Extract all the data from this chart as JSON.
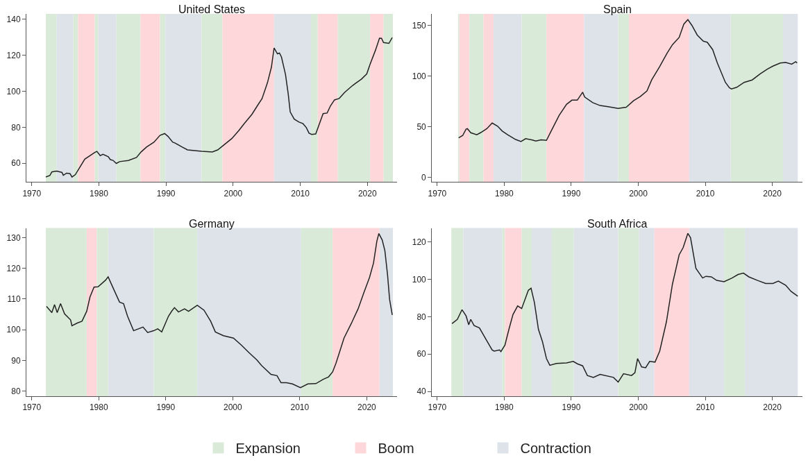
{
  "chart_data": [
    {
      "type": "line",
      "title": "United States",
      "legend": "bottom",
      "color": "#222222",
      "x": [
        1972.1,
        1972.7,
        1973.0,
        1973.7,
        1974.5,
        1974.7,
        1975.2,
        1975.7,
        1976.0,
        1976.5,
        1977.9,
        1979.4,
        1979.7,
        1980.2,
        1980.6,
        1981.4,
        1981.7,
        1982.1,
        1982.6,
        1983.1,
        1984.4,
        1985.6,
        1986.3,
        1987.1,
        1988.2,
        1989.1,
        1989.8,
        1990.3,
        1991.0,
        1991.3,
        1992.4,
        1993.2,
        1995.3,
        1996.9,
        1997.7,
        1998.4,
        1999.8,
        2000.9,
        2001.6,
        2002.8,
        2003.6,
        2004.3,
        2005.1,
        2005.7,
        2006.1,
        2006.6,
        2006.9,
        2007.2,
        2007.8,
        2008.2,
        2008.5,
        2009.1,
        2009.8,
        2010.4,
        2010.9,
        2011.3,
        2011.7,
        2012.3,
        2013.4,
        2014.0,
        2014.5,
        2015.1,
        2015.8,
        2016.6,
        2017.6,
        2018.3,
        2019.1,
        2019.9,
        2020.4,
        2021.2,
        2021.8,
        2022.1,
        2022.4,
        2023.2,
        2023.7
      ],
      "values": [
        52.4,
        53.2,
        55.2,
        55.6,
        54.9,
        53.3,
        54.5,
        54.2,
        52.3,
        53.7,
        62.3,
        66.0,
        66.6,
        64.2,
        65.0,
        63.6,
        62.0,
        61.6,
        59.9,
        60.9,
        61.5,
        63.2,
        66.3,
        69.0,
        71.7,
        75.5,
        76.5,
        74.9,
        71.7,
        71.3,
        69.0,
        67.4,
        66.6,
        66.3,
        67.4,
        69.5,
        73.7,
        78.4,
        81.8,
        87.2,
        91.9,
        95.9,
        104.6,
        113.4,
        124.1,
        120.8,
        121.2,
        119.0,
        109.3,
        98.6,
        88.5,
        84.5,
        82.9,
        82.0,
        79.8,
        76.7,
        76.0,
        76.3,
        87.6,
        87.9,
        91.9,
        95.2,
        96.0,
        99.3,
        102.6,
        104.6,
        106.7,
        109.6,
        115.0,
        122.8,
        129.5,
        129.4,
        127.1,
        126.6,
        129.8
      ],
      "bands": [
        {
          "axis": "x",
          "from": 1972.1,
          "to": 1973.7,
          "label": "Expansion",
          "color": "#d9ead9"
        },
        {
          "axis": "x",
          "from": 1973.7,
          "to": 1976.2,
          "color": "#dee3ea"
        },
        {
          "axis": "x",
          "from": 1976.2,
          "to": 1976.9,
          "color": "#d9ead9"
        },
        {
          "axis": "x",
          "from": 1976.9,
          "to": 1979.4,
          "label": "Boom",
          "color": "#fdd7da"
        },
        {
          "axis": "x",
          "from": 1979.4,
          "to": 1979.9,
          "color": "#d9ead9"
        },
        {
          "axis": "x",
          "from": 1979.9,
          "to": 1982.6,
          "label": "Contraction",
          "color": "#dee3ea"
        },
        {
          "axis": "x",
          "from": 1982.6,
          "to": 1986.2,
          "color": "#d9ead9"
        },
        {
          "axis": "x",
          "from": 1986.2,
          "to": 1989.1,
          "color": "#fdd7da"
        },
        {
          "axis": "x",
          "from": 1989.1,
          "to": 1989.9,
          "color": "#d9ead9"
        },
        {
          "axis": "x",
          "from": 1989.9,
          "to": 1995.3,
          "color": "#dee3ea"
        },
        {
          "axis": "x",
          "from": 1995.3,
          "to": 1998.4,
          "color": "#d9ead9"
        },
        {
          "axis": "x",
          "from": 1998.4,
          "to": 2006.1,
          "color": "#fdd7da"
        },
        {
          "axis": "x",
          "from": 2006.1,
          "to": 2011.6,
          "color": "#dee3ea"
        },
        {
          "axis": "x",
          "from": 2011.6,
          "to": 2012.6,
          "color": "#d9ead9"
        },
        {
          "axis": "x",
          "from": 2012.6,
          "to": 2015.6,
          "color": "#fdd7da"
        },
        {
          "axis": "x",
          "from": 2015.6,
          "to": 2020.4,
          "color": "#d9ead9"
        },
        {
          "axis": "x",
          "from": 2020.4,
          "to": 2022.4,
          "color": "#fdd7da"
        },
        {
          "axis": "x",
          "from": 2022.4,
          "to": 2023.8,
          "color": "#d9ead9"
        }
      ],
      "xlim": [
        1969.2,
        2024.4
      ],
      "xticks": [
        1970,
        1980,
        1990,
        2000,
        2010,
        2020
      ],
      "ylim": [
        49.5,
        143
      ],
      "yticks": [
        60,
        80,
        100,
        120,
        140
      ]
    },
    {
      "type": "line",
      "title": "Spain",
      "color": "#222222",
      "x": [
        1973.2,
        1973.8,
        1974.3,
        1974.5,
        1975.0,
        1975.9,
        1976.5,
        1977.4,
        1978.2,
        1979.0,
        1979.7,
        1980.5,
        1981.7,
        1982.5,
        1983.2,
        1984.2,
        1984.7,
        1985.5,
        1986.3,
        1987.0,
        1988.2,
        1989.3,
        1990.1,
        1990.9,
        1991.7,
        1992.0,
        1993.2,
        1994.3,
        1995.5,
        1997.0,
        1998.2,
        1999.3,
        2000.3,
        2001.3,
        2002.0,
        2003.2,
        2004.3,
        2005.1,
        2006.1,
        2006.8,
        2007.4,
        2008.0,
        2008.8,
        2009.7,
        2010.3,
        2011.1,
        2011.8,
        2013.0,
        2013.6,
        2013.9,
        2014.7,
        2015.8,
        2017.0,
        2018.2,
        2019.3,
        2020.1,
        2021.2,
        2022.0,
        2022.9,
        2023.5,
        2023.7
      ],
      "values": [
        38.9,
        41.3,
        47.6,
        48.0,
        44.0,
        42.0,
        44.2,
        48.0,
        53.6,
        50.5,
        45.7,
        42.1,
        37.3,
        35.3,
        38.2,
        36.8,
        35.8,
        37.0,
        36.5,
        45.7,
        61.3,
        72.1,
        76.2,
        76.2,
        84.1,
        79.3,
        73.8,
        70.9,
        69.7,
        68.0,
        69.2,
        75.7,
        79.8,
        85.3,
        96.2,
        109.4,
        122.6,
        131.0,
        138.2,
        151.4,
        155.8,
        150.2,
        140.6,
        134.6,
        133.4,
        126.2,
        113.0,
        93.8,
        88.5,
        87.3,
        88.9,
        93.8,
        96.2,
        102.2,
        107.0,
        109.9,
        113.0,
        113.5,
        111.8,
        114.2,
        113.0
      ],
      "bands": [
        {
          "axis": "x",
          "from": 1973.1,
          "to": 1973.3,
          "color": "#d9ead9"
        },
        {
          "axis": "x",
          "from": 1973.3,
          "to": 1974.8,
          "color": "#fdd7da"
        },
        {
          "axis": "x",
          "from": 1974.8,
          "to": 1976.9,
          "color": "#d9ead9"
        },
        {
          "axis": "x",
          "from": 1976.9,
          "to": 1978.4,
          "color": "#fdd7da"
        },
        {
          "axis": "x",
          "from": 1978.4,
          "to": 1982.6,
          "color": "#dee3ea"
        },
        {
          "axis": "x",
          "from": 1982.6,
          "to": 1986.3,
          "color": "#d9ead9"
        },
        {
          "axis": "x",
          "from": 1986.3,
          "to": 1991.9,
          "color": "#fdd7da"
        },
        {
          "axis": "x",
          "from": 1991.9,
          "to": 1997.0,
          "color": "#dee3ea"
        },
        {
          "axis": "x",
          "from": 1997.0,
          "to": 1998.6,
          "color": "#d9ead9"
        },
        {
          "axis": "x",
          "from": 1998.6,
          "to": 2007.6,
          "color": "#fdd7da"
        },
        {
          "axis": "x",
          "from": 2007.6,
          "to": 2013.8,
          "color": "#dee3ea"
        },
        {
          "axis": "x",
          "from": 2013.8,
          "to": 2021.6,
          "color": "#d9ead9"
        },
        {
          "axis": "x",
          "from": 2021.6,
          "to": 2023.8,
          "color": "#dee3ea"
        }
      ],
      "xlim": [
        1969.2,
        2024.5
      ],
      "xticks": [
        1970,
        1980,
        1990,
        2000,
        2010,
        2020
      ],
      "ylim": [
        -4.8,
        161.5
      ],
      "yticks": [
        0,
        50,
        100,
        150
      ]
    },
    {
      "type": "line",
      "title": "Germany",
      "color": "#222222",
      "x": [
        1972.2,
        1973.0,
        1973.4,
        1973.8,
        1974.3,
        1974.9,
        1975.8,
        1976.0,
        1976.8,
        1977.5,
        1978.2,
        1978.7,
        1979.3,
        1979.9,
        1981.0,
        1981.4,
        1982.0,
        1983.1,
        1983.7,
        1984.3,
        1985.2,
        1986.6,
        1987.3,
        1988.2,
        1988.8,
        1989.4,
        1990.4,
        1990.9,
        1991.3,
        1991.9,
        1992.8,
        1993.4,
        1994.7,
        1995.7,
        1996.7,
        1997.4,
        1998.6,
        2000.1,
        2001.3,
        2002.4,
        2003.6,
        2004.3,
        2005.7,
        2006.6,
        2007.2,
        2008.0,
        2008.9,
        2010.1,
        2011.2,
        2012.4,
        2013.5,
        2014.3,
        2014.9,
        2015.4,
        2016.6,
        2017.7,
        2018.7,
        2019.6,
        2020.4,
        2021.0,
        2021.5,
        2021.8,
        2022.3,
        2022.7,
        2023.1,
        2023.4,
        2023.8
      ],
      "values": [
        107.6,
        105.6,
        108.2,
        105.6,
        108.5,
        105.2,
        103.2,
        101.3,
        102.2,
        102.8,
        106.0,
        110.7,
        113.9,
        114.0,
        116.1,
        117.2,
        114.3,
        109.0,
        108.5,
        104.4,
        99.7,
        100.9,
        99.1,
        99.7,
        100.3,
        99.3,
        104.4,
        106.1,
        107.2,
        105.8,
        106.8,
        106.0,
        108.0,
        106.4,
        102.8,
        99.3,
        98.1,
        97.3,
        95.0,
        92.6,
        90.2,
        88.4,
        85.5,
        85.1,
        82.8,
        82.8,
        82.4,
        81.2,
        82.4,
        82.5,
        83.9,
        84.7,
        86.3,
        89.1,
        97.3,
        102.1,
        106.8,
        112.3,
        117.0,
        121.7,
        128.8,
        131.3,
        129.2,
        125.7,
        117.8,
        109.9,
        104.8
      ],
      "bands": [
        {
          "axis": "x",
          "from": 1972.1,
          "to": 1978.2,
          "color": "#d9ead9"
        },
        {
          "axis": "x",
          "from": 1978.2,
          "to": 1979.7,
          "color": "#fdd7da"
        },
        {
          "axis": "x",
          "from": 1979.7,
          "to": 1981.4,
          "color": "#d9ead9"
        },
        {
          "axis": "x",
          "from": 1981.4,
          "to": 1988.2,
          "color": "#dee3ea"
        },
        {
          "axis": "x",
          "from": 1988.2,
          "to": 1994.7,
          "color": "#d9ead9"
        },
        {
          "axis": "x",
          "from": 1994.7,
          "to": 2010.2,
          "color": "#dee3ea"
        },
        {
          "axis": "x",
          "from": 2010.2,
          "to": 2014.9,
          "color": "#d9ead9"
        },
        {
          "axis": "x",
          "from": 2014.9,
          "to": 2021.9,
          "color": "#fdd7da"
        },
        {
          "axis": "x",
          "from": 2021.9,
          "to": 2023.9,
          "color": "#dee3ea"
        }
      ],
      "xlim": [
        1969.2,
        2024.5
      ],
      "xticks": [
        1970,
        1980,
        1990,
        2000,
        2010,
        2020
      ],
      "ylim": [
        78.4,
        133.1
      ],
      "yticks": [
        80,
        90,
        100,
        110,
        120,
        130
      ]
    },
    {
      "type": "line",
      "title": "South Africa",
      "color": "#222222",
      "x": [
        1972.2,
        1973.0,
        1973.7,
        1974.3,
        1974.7,
        1975.0,
        1975.5,
        1976.3,
        1977.4,
        1978.2,
        1978.5,
        1979.3,
        1979.5,
        1980.1,
        1980.7,
        1981.3,
        1982.0,
        1982.6,
        1983.6,
        1984.0,
        1984.5,
        1985.1,
        1985.7,
        1986.3,
        1986.8,
        1987.8,
        1989.3,
        1990.3,
        1990.9,
        1991.7,
        1992.4,
        1993.3,
        1994.3,
        1996.3,
        1997.0,
        1997.8,
        1999.0,
        1999.5,
        1999.9,
        2000.5,
        2001.1,
        2001.7,
        2002.5,
        2003.2,
        2004.2,
        2005.1,
        2006.1,
        2006.7,
        2007.4,
        2007.8,
        2008.6,
        2009.6,
        2010.1,
        2010.9,
        2011.7,
        2012.8,
        2014.0,
        2014.9,
        2015.7,
        2016.5,
        2017.8,
        2019.0,
        2020.1,
        2020.9,
        2022.0,
        2022.8,
        2023.8
      ],
      "values": [
        76.3,
        78.6,
        83.8,
        80.5,
        75.7,
        78.6,
        75.3,
        74.0,
        67.1,
        62.2,
        61.6,
        62.2,
        61.3,
        64.8,
        73.3,
        81.2,
        85.8,
        84.4,
        94.2,
        95.3,
        87.7,
        73.3,
        66.7,
        57.6,
        54.0,
        55.0,
        55.3,
        56.1,
        54.8,
        53.7,
        48.5,
        47.5,
        49.1,
        47.5,
        45.0,
        49.5,
        48.5,
        50.0,
        57.6,
        53.1,
        52.7,
        56.1,
        55.7,
        61.6,
        77.3,
        97.5,
        113.2,
        117.1,
        124.7,
        122.4,
        106.0,
        100.8,
        101.7,
        101.4,
        99.5,
        98.8,
        100.8,
        102.7,
        103.4,
        101.4,
        99.5,
        97.9,
        97.9,
        99.1,
        96.9,
        93.6,
        91.0
      ],
      "bands": [
        {
          "axis": "x",
          "from": 1972.1,
          "to": 1973.9,
          "color": "#d9ead9"
        },
        {
          "axis": "x",
          "from": 1973.9,
          "to": 1979.7,
          "color": "#dee3ea"
        },
        {
          "axis": "x",
          "from": 1979.7,
          "to": 1980.1,
          "color": "#d9ead9"
        },
        {
          "axis": "x",
          "from": 1980.1,
          "to": 1982.6,
          "color": "#fdd7da"
        },
        {
          "axis": "x",
          "from": 1982.6,
          "to": 1984.1,
          "color": "#d9ead9"
        },
        {
          "axis": "x",
          "from": 1984.1,
          "to": 1987.1,
          "color": "#dee3ea"
        },
        {
          "axis": "x",
          "from": 1987.1,
          "to": 1990.4,
          "color": "#d9ead9"
        },
        {
          "axis": "x",
          "from": 1990.4,
          "to": 1997.0,
          "color": "#dee3ea"
        },
        {
          "axis": "x",
          "from": 1997.0,
          "to": 2000.1,
          "color": "#d9ead9"
        },
        {
          "axis": "x",
          "from": 2000.1,
          "to": 2002.4,
          "color": "#dee3ea"
        },
        {
          "axis": "x",
          "from": 2002.4,
          "to": 2007.6,
          "color": "#fdd7da"
        },
        {
          "axis": "x",
          "from": 2007.6,
          "to": 2012.8,
          "color": "#dee3ea"
        },
        {
          "axis": "x",
          "from": 2012.8,
          "to": 2015.9,
          "color": "#d9ead9"
        },
        {
          "axis": "x",
          "from": 2015.9,
          "to": 2023.8,
          "color": "#dee3ea"
        }
      ],
      "xlim": [
        1969.2,
        2024.5
      ],
      "xticks": [
        1970,
        1980,
        1990,
        2000,
        2010,
        2020
      ],
      "ylim": [
        37.4,
        127.6
      ],
      "yticks": [
        40,
        60,
        80,
        100,
        120
      ]
    }
  ]
}
